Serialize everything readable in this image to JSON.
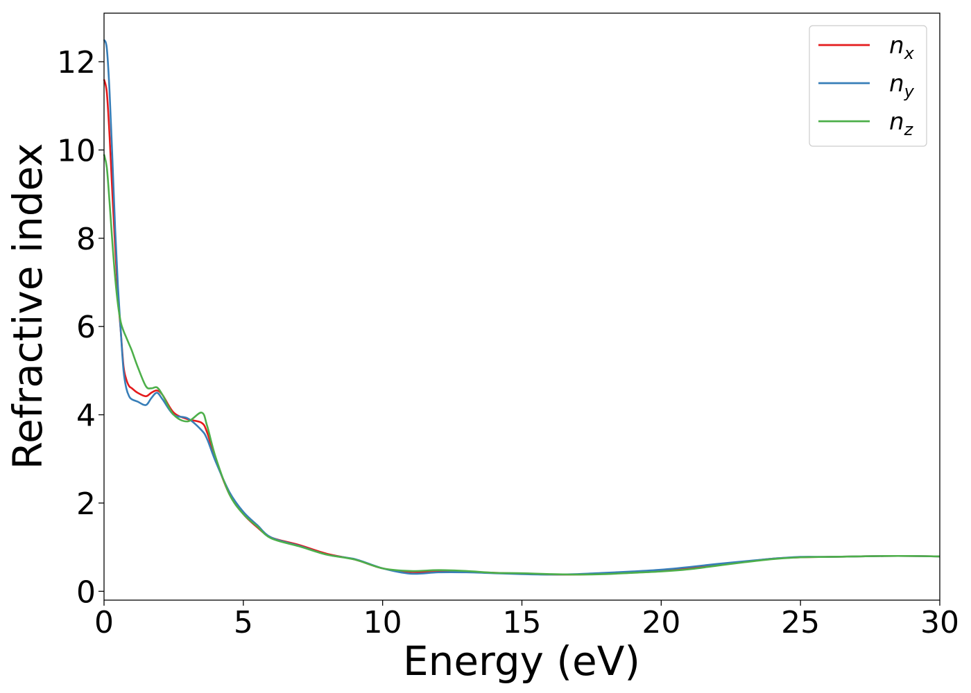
{
  "chart_data": {
    "type": "line",
    "xlabel": "Energy (eV)",
    "ylabel": "Refractive index",
    "xlim": [
      0,
      30
    ],
    "ylim": [
      -0.2,
      13.1
    ],
    "xticks": [
      0,
      5,
      10,
      15,
      20,
      25,
      30
    ],
    "yticks": [
      0,
      2,
      4,
      6,
      8,
      10,
      12
    ],
    "grid": false,
    "legend_position": "top-right",
    "series": [
      {
        "name": "n",
        "subscript": "x",
        "color": "#e41a1c",
        "x": [
          0,
          0.1,
          0.2,
          0.3,
          0.4,
          0.5,
          0.6,
          0.7,
          0.8,
          0.9,
          1.0,
          1.2,
          1.5,
          1.7,
          1.9,
          2.1,
          2.5,
          3.0,
          3.5,
          3.7,
          4.0,
          4.5,
          5.0,
          5.5,
          6.0,
          7.0,
          8.0,
          9.0,
          10.0,
          11.0,
          12.0,
          13.0,
          14.0,
          15.0,
          16.0,
          17.0,
          18.0,
          19.0,
          20.0,
          21.0,
          22.0,
          23.0,
          24.0,
          25.0,
          26.0,
          27.0,
          28.0,
          29.0,
          30.0
        ],
        "values": [
          11.6,
          11.3,
          10.3,
          9.0,
          7.8,
          6.7,
          5.9,
          5.1,
          4.8,
          4.65,
          4.6,
          4.5,
          4.42,
          4.5,
          4.55,
          4.45,
          4.05,
          3.9,
          3.82,
          3.6,
          3.0,
          2.2,
          1.75,
          1.45,
          1.22,
          1.05,
          0.85,
          0.72,
          0.52,
          0.44,
          0.44,
          0.44,
          0.42,
          0.4,
          0.38,
          0.38,
          0.4,
          0.43,
          0.47,
          0.52,
          0.6,
          0.67,
          0.74,
          0.77,
          0.78,
          0.79,
          0.8,
          0.8,
          0.79
        ]
      },
      {
        "name": "n",
        "subscript": "y",
        "color": "#377eb8",
        "x": [
          0,
          0.1,
          0.2,
          0.3,
          0.4,
          0.5,
          0.6,
          0.7,
          0.8,
          0.9,
          1.0,
          1.2,
          1.5,
          1.7,
          1.9,
          2.1,
          2.5,
          3.0,
          3.5,
          3.7,
          4.0,
          4.5,
          5.0,
          5.5,
          6.0,
          7.0,
          8.0,
          9.0,
          10.0,
          11.0,
          12.0,
          13.0,
          14.0,
          15.0,
          16.0,
          17.0,
          18.0,
          19.0,
          20.0,
          21.0,
          22.0,
          23.0,
          24.0,
          25.0,
          26.0,
          27.0,
          28.0,
          29.0,
          30.0
        ],
        "values": [
          12.5,
          12.3,
          11.3,
          9.8,
          8.2,
          6.9,
          5.9,
          5.0,
          4.6,
          4.42,
          4.35,
          4.3,
          4.22,
          4.38,
          4.5,
          4.35,
          4.0,
          3.92,
          3.65,
          3.45,
          2.95,
          2.25,
          1.8,
          1.5,
          1.22,
          1.03,
          0.83,
          0.73,
          0.52,
          0.4,
          0.43,
          0.43,
          0.41,
          0.39,
          0.38,
          0.39,
          0.42,
          0.45,
          0.49,
          0.55,
          0.62,
          0.68,
          0.74,
          0.78,
          0.78,
          0.79,
          0.8,
          0.8,
          0.79
        ]
      },
      {
        "name": "n",
        "subscript": "z",
        "color": "#4daf4a",
        "x": [
          0,
          0.1,
          0.2,
          0.3,
          0.4,
          0.5,
          0.6,
          0.7,
          0.8,
          0.9,
          1.0,
          1.2,
          1.5,
          1.7,
          1.9,
          2.1,
          2.5,
          3.0,
          3.5,
          3.7,
          4.0,
          4.5,
          5.0,
          5.5,
          6.0,
          7.0,
          8.0,
          9.0,
          10.0,
          11.0,
          12.0,
          13.0,
          14.0,
          15.0,
          16.0,
          17.0,
          18.0,
          19.0,
          20.0,
          21.0,
          22.0,
          23.0,
          24.0,
          25.0,
          26.0,
          27.0,
          28.0,
          29.0,
          30.0
        ],
        "values": [
          9.9,
          9.6,
          8.8,
          7.9,
          7.1,
          6.5,
          6.1,
          5.9,
          5.75,
          5.6,
          5.45,
          5.1,
          4.65,
          4.6,
          4.62,
          4.45,
          4.0,
          3.85,
          4.05,
          3.75,
          3.05,
          2.2,
          1.75,
          1.47,
          1.2,
          1.02,
          0.83,
          0.72,
          0.52,
          0.46,
          0.48,
          0.46,
          0.42,
          0.41,
          0.39,
          0.38,
          0.39,
          0.42,
          0.45,
          0.5,
          0.58,
          0.66,
          0.73,
          0.77,
          0.78,
          0.79,
          0.8,
          0.8,
          0.79
        ]
      }
    ]
  }
}
